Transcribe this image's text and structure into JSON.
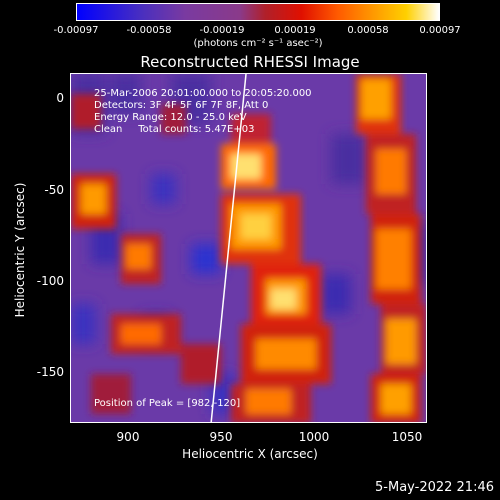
{
  "colorbar": {
    "ticks": [
      "-0.00097",
      "-0.00058",
      "-0.00019",
      "0.00019",
      "0.00058",
      "0.00097"
    ],
    "unit": "(photons cm⁻² s⁻¹ asec⁻²)"
  },
  "title": "Reconstructed RHESSI Image",
  "info": {
    "time": "25-Mar-2006 20:01:00.000 to 20:05:20.000",
    "detectors": "Detectors: 3F 4F 5F 6F 7F 8F, Att 0",
    "energy": "Energy Range: 12.0 - 25.0 keV",
    "clean": "Clean     Total counts: 5.47E+03",
    "peak": "Position of Peak = [982,-120]"
  },
  "axes": {
    "xlabel": "Heliocentric X (arcsec)",
    "ylabel": "Heliocentric Y (arcsec)",
    "xticks": [
      "900",
      "950",
      "1000",
      "1050"
    ],
    "yticks": [
      "0",
      "-50",
      "-100",
      "-150"
    ],
    "xlim": [
      870,
      1062
    ],
    "ylim": [
      -180,
      10
    ]
  },
  "footer": {
    "date": "5-May-2022 21:46"
  }
}
